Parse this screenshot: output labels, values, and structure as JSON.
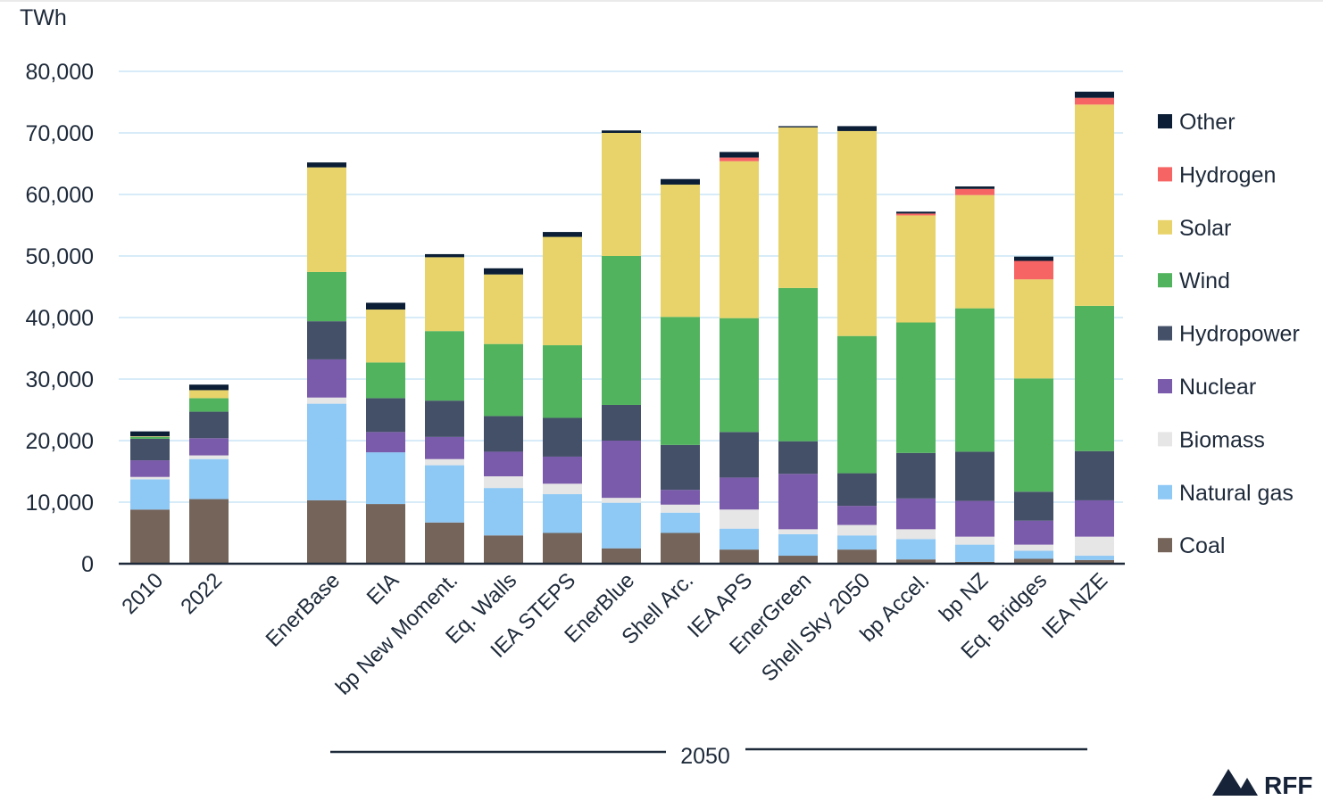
{
  "chart_data": {
    "type": "bar",
    "stacked": true,
    "ylabel": "TWh",
    "ylim": [
      0,
      80000
    ],
    "yticks": [
      0,
      10000,
      20000,
      30000,
      40000,
      50000,
      60000,
      70000,
      80000
    ],
    "ytick_labels": [
      "0",
      "10,000",
      "20,000",
      "30,000",
      "40,000",
      "50,000",
      "60,000",
      "70,000",
      "80,000"
    ],
    "grid": true,
    "legend_position": "right",
    "group_label": "2050",
    "categories": [
      "2010",
      "2022",
      "EnerBase",
      "EIA",
      "bp New Moment.",
      "Eq. Walls",
      "IEA STEPS",
      "EnerBlue",
      "Shell Arc.",
      "IEA APS",
      "EnerGreen",
      "Shell Sky 2050",
      "bp Accel.",
      "bp NZ",
      "Eq. Bridges",
      "IEA NZE"
    ],
    "series": [
      {
        "name": "Coal",
        "color": "#75645a",
        "values": [
          8800,
          10500,
          10300,
          9700,
          6700,
          4600,
          5000,
          2500,
          5000,
          2300,
          1300,
          2300,
          700,
          300,
          800,
          600
        ]
      },
      {
        "name": "Natural gas",
        "color": "#8ec8f5",
        "values": [
          4900,
          6500,
          15700,
          8400,
          9300,
          7700,
          6300,
          7400,
          3300,
          3400,
          3500,
          2300,
          3300,
          2800,
          1300,
          700
        ]
      },
      {
        "name": "Biomass",
        "color": "#e6e6e6",
        "values": [
          400,
          600,
          1000,
          0,
          1000,
          1900,
          1700,
          800,
          1300,
          3100,
          800,
          1700,
          1600,
          1300,
          1000,
          3100
        ]
      },
      {
        "name": "Nuclear",
        "color": "#7a5aaa",
        "values": [
          2700,
          2800,
          6200,
          3300,
          3600,
          4000,
          4400,
          9300,
          2400,
          5200,
          9000,
          3100,
          5000,
          5800,
          3900,
          5900
        ]
      },
      {
        "name": "Hydropower",
        "color": "#435068",
        "values": [
          3500,
          4300,
          6200,
          5500,
          5900,
          5800,
          6300,
          5800,
          7300,
          7400,
          5300,
          5300,
          7400,
          8000,
          4700,
          8000
        ]
      },
      {
        "name": "Wind",
        "color": "#52b35e",
        "values": [
          300,
          2200,
          8000,
          5800,
          11300,
          11700,
          11800,
          24200,
          20800,
          18500,
          24900,
          22300,
          21200,
          23300,
          18400,
          23600
        ]
      },
      {
        "name": "Solar",
        "color": "#e8d36a",
        "values": [
          100,
          1300,
          17000,
          8600,
          12000,
          11300,
          17600,
          20000,
          21500,
          25500,
          26100,
          33300,
          17400,
          18400,
          16100,
          32700
        ]
      },
      {
        "name": "Hydrogen",
        "color": "#f76464",
        "values": [
          0,
          0,
          0,
          0,
          0,
          0,
          0,
          0,
          0,
          600,
          0,
          0,
          300,
          1000,
          3000,
          1100
        ]
      },
      {
        "name": "Other",
        "color": "#0b1e35",
        "values": [
          800,
          900,
          800,
          1100,
          500,
          1000,
          800,
          400,
          900,
          900,
          200,
          800,
          300,
          400,
          700,
          1000
        ]
      }
    ]
  },
  "branding": {
    "logo_text": "RFF",
    "logo_color": "#162338"
  }
}
